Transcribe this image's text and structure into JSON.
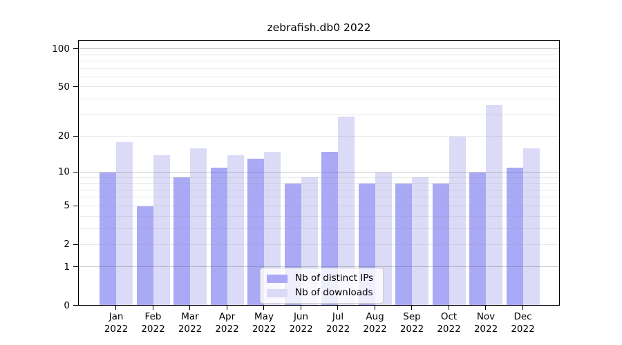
{
  "chart_data": {
    "type": "bar",
    "title": "zebrafish.db0 2022",
    "categories": [
      "Jan 2022",
      "Feb 2022",
      "Mar 2022",
      "Apr 2022",
      "May 2022",
      "Jun 2022",
      "Jul 2022",
      "Aug 2022",
      "Sep 2022",
      "Oct 2022",
      "Nov 2022",
      "Dec 2022"
    ],
    "series": [
      {
        "name": "Nb of distinct IPs",
        "color": "#a9a9f6",
        "values": [
          10,
          5,
          9,
          11,
          13,
          8,
          15,
          8,
          8,
          8,
          10,
          11
        ]
      },
      {
        "name": "Nb of downloads",
        "color": "#dbdbf8",
        "values": [
          18,
          14,
          16,
          14,
          15,
          9,
          29,
          10,
          9,
          20,
          36,
          16
        ]
      }
    ],
    "y_axis": {
      "scale": "log10(1+x)",
      "tick_labels": [
        0,
        1,
        2,
        5,
        10,
        20,
        50,
        100
      ],
      "major_gridlines": [
        1,
        10,
        100
      ],
      "minor_gridlines": [
        2,
        3,
        4,
        5,
        6,
        7,
        8,
        9,
        20,
        30,
        40,
        50,
        60,
        70,
        80,
        90
      ],
      "ylim": [
        0,
        117
      ]
    },
    "legend": {
      "position": "lower center",
      "entries": [
        "Nb of distinct IPs",
        "Nb of downloads"
      ]
    },
    "grid": true,
    "colors": {
      "bar_ips": "#a9a9f6",
      "bar_downloads": "#dbdbf8",
      "major_grid": "#c9c9c9",
      "minor_grid": "#e9e9e9",
      "axis": "#000000",
      "legend_border": "#cccccc",
      "legend_bg": "rgba(255,255,255,0.8)",
      "text": "#000000",
      "background": "#ffffff"
    }
  }
}
